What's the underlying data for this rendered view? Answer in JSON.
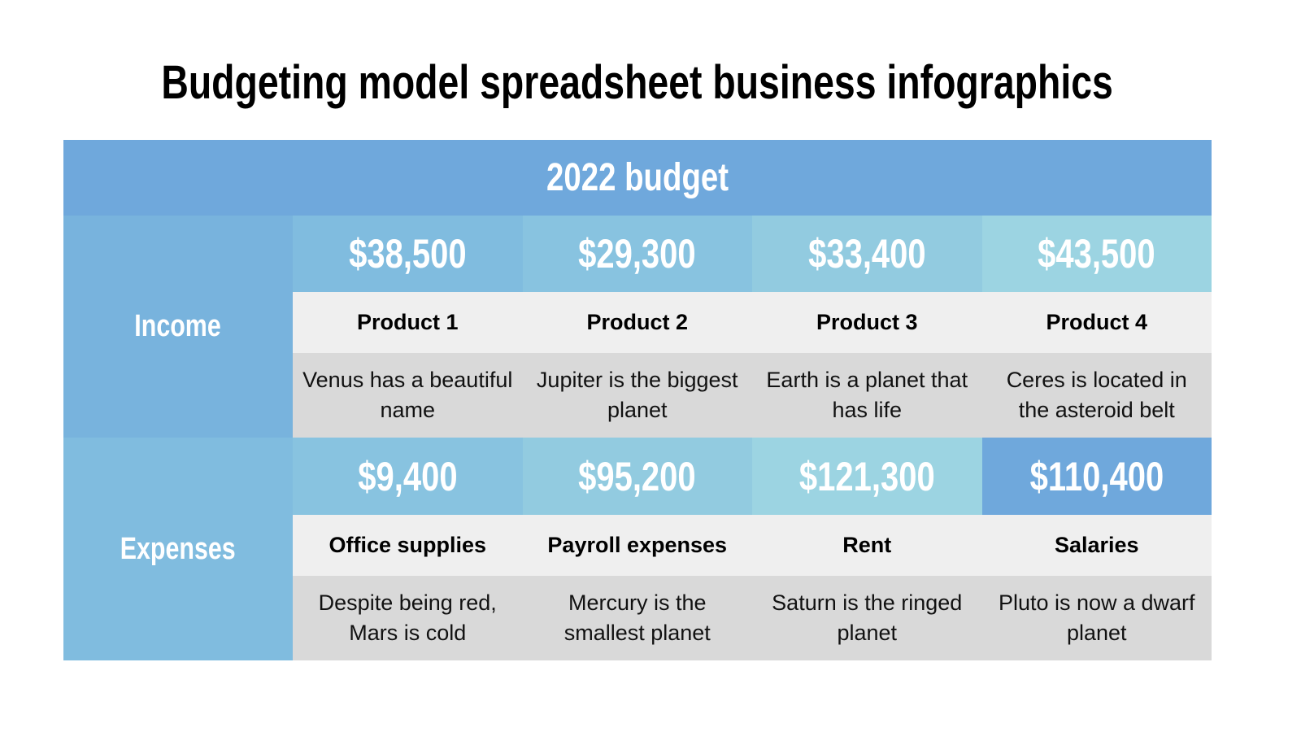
{
  "title": "Budgeting model spreadsheet business infographics",
  "table": {
    "header": "2022 budget",
    "income": {
      "label": "Income",
      "items": [
        {
          "value": "$38,500",
          "name": "Product 1",
          "desc": "Venus has a beautiful name",
          "color": "#80bcdf"
        },
        {
          "value": "$29,300",
          "name": "Product 2",
          "desc": "Jupiter is the biggest planet",
          "color": "#88c3e0"
        },
        {
          "value": "$33,400",
          "name": "Product 3",
          "desc": "Earth is a planet that has life",
          "color": "#92cbe0"
        },
        {
          "value": "$43,500",
          "name": "Product 4",
          "desc": "Ceres is located in the asteroid belt",
          "color": "#9cd4e2"
        }
      ]
    },
    "expenses": {
      "label": "Expenses",
      "items": [
        {
          "value": "$9,400",
          "name": "Office supplies",
          "desc": "Despite being red, Mars is cold",
          "color": "#88c3e0"
        },
        {
          "value": "$95,200",
          "name": "Payroll expenses",
          "desc": "Mercury is the smallest planet",
          "color": "#92cbe0"
        },
        {
          "value": "$121,300",
          "name": "Rent",
          "desc": "Saturn is the ringed planet",
          "color": "#9cd4e2"
        },
        {
          "value": "$110,400",
          "name": "Salaries",
          "desc": "Pluto is now a dwarf planet",
          "color": "#6fa8dc"
        }
      ]
    }
  }
}
